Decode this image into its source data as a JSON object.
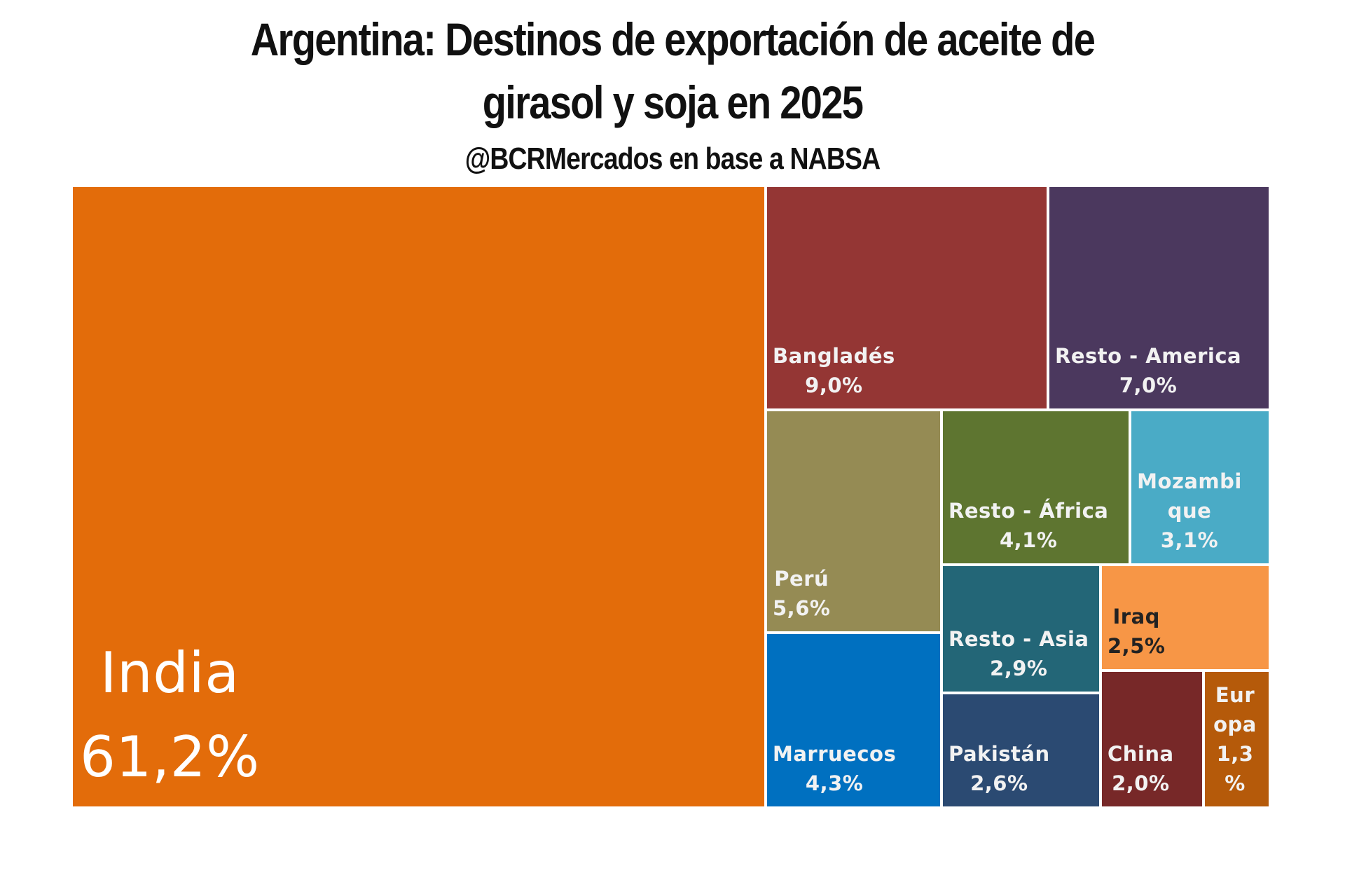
{
  "chart_data": {
    "type": "treemap",
    "title_line1": "Argentina: Destinos de exportación de aceite de",
    "title_line2": "girasol y soja en 2025",
    "subtitle": "@BCRMercados en base a NABSA",
    "items": [
      {
        "name": "India",
        "value_label": "61,2%",
        "value": 61.2,
        "color": "#E36C0A"
      },
      {
        "name": "Bangladés",
        "value_label": "9,0%",
        "value": 9.0,
        "color": "#943634"
      },
      {
        "name": "Resto - America",
        "value_label": "7,0%",
        "value": 7.0,
        "color": "#4B385E"
      },
      {
        "name": "Perú",
        "value_label": "5,6%",
        "value": 5.6,
        "color": "#958B54"
      },
      {
        "name": "Marruecos",
        "value_label": "4,3%",
        "value": 4.3,
        "color": "#0070C0"
      },
      {
        "name": "Resto - África",
        "value_label": "4,1%",
        "value": 4.1,
        "color": "#5E7530"
      },
      {
        "name": "Mozambique",
        "value_label": "3,1%",
        "value": 3.1,
        "color": "#4AABC6"
      },
      {
        "name": "Resto - Asia",
        "value_label": "2,9%",
        "value": 2.9,
        "color": "#236677"
      },
      {
        "name": "Pakistán",
        "value_label": "2,6%",
        "value": 2.6,
        "color": "#2B4A72"
      },
      {
        "name": "Iraq",
        "value_label": "2,5%",
        "value": 2.5,
        "color": "#F79646"
      },
      {
        "name": "China",
        "value_label": "2,0%",
        "value": 2.0,
        "color": "#772828"
      },
      {
        "name": "Europa",
        "value_label": "1,3 %",
        "value": 1.3,
        "color": "#B55A0A"
      }
    ]
  }
}
